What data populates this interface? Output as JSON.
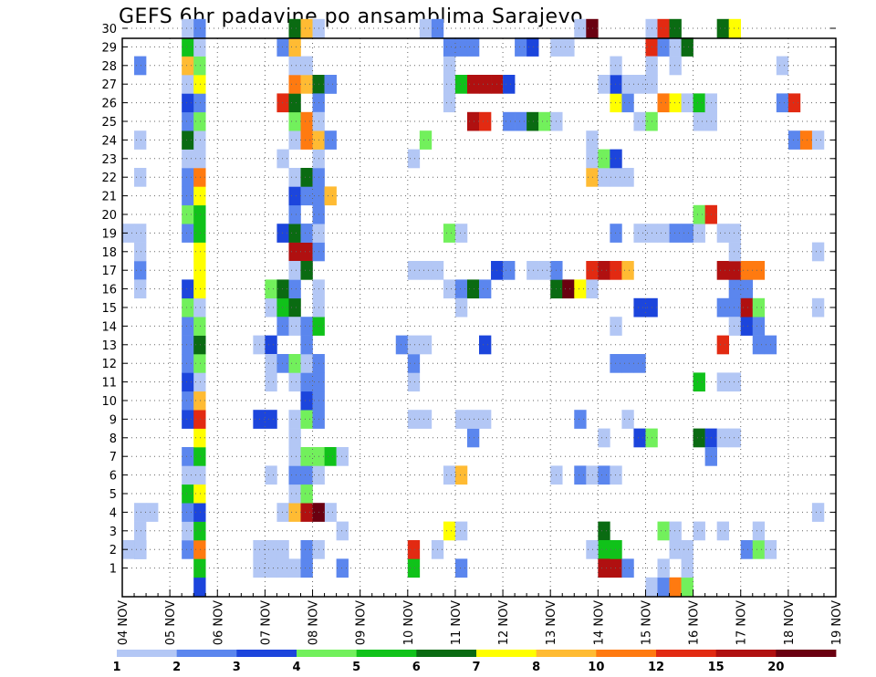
{
  "chart_data": {
    "type": "heatmap",
    "title": "GEFS 6hr padavine po ansamblima Sarajevo",
    "y_members": [
      1,
      2,
      3,
      4,
      5,
      6,
      7,
      8,
      9,
      10,
      11,
      12,
      13,
      14,
      15,
      16,
      17,
      18,
      19,
      20,
      21,
      22,
      23,
      24,
      25,
      26,
      27,
      28,
      29,
      30
    ],
    "x_tick_labels": [
      "04 NOV",
      "05 NOV",
      "06 NOV",
      "07 NOV",
      "08 NOV",
      "09 NOV",
      "10 NOV",
      "11 NOV",
      "12 NOV",
      "13 NOV",
      "14 NOV",
      "15 NOV",
      "16 NOV",
      "17 NOV",
      "18 NOV",
      "19 NOV"
    ],
    "x_range_steps": [
      0,
      60
    ],
    "legend": {
      "labels": [
        "1",
        "2",
        "3",
        "4",
        "5",
        "6",
        "7",
        "8",
        "10",
        "12",
        "15",
        "20"
      ],
      "colors": [
        "#b3c7f5",
        "#5b86ee",
        "#1c45dc",
        "#72f05c",
        "#10c21a",
        "#0a6b12",
        "#ffff00",
        "#ffbb33",
        "#ff7a10",
        "#e22a12",
        "#b01010",
        "#6a0010"
      ]
    },
    "grid": true,
    "cells": [
      [
        28,
        1,
        2
      ],
      [
        18,
        1,
        2
      ],
      [
        0,
        2,
        1
      ],
      [
        1,
        2,
        2
      ],
      [
        1,
        3,
        1
      ],
      [
        18,
        3,
        1
      ],
      [
        2,
        4,
        1
      ],
      [
        17,
        4,
        1
      ],
      [
        1,
        2,
        1
      ],
      [
        1,
        4,
        1
      ],
      [
        1,
        17,
        2
      ],
      [
        1,
        18,
        1
      ],
      [
        1,
        16,
        1
      ],
      [
        0,
        19,
        1
      ],
      [
        1,
        19,
        1
      ],
      [
        1,
        22,
        1
      ],
      [
        1,
        24,
        1
      ],
      [
        1,
        28,
        2
      ],
      [
        6,
        0,
        3
      ],
      [
        6,
        1,
        5
      ],
      [
        5,
        2,
        2
      ],
      [
        6,
        2,
        9
      ],
      [
        5,
        3,
        1
      ],
      [
        6,
        3,
        5
      ],
      [
        5,
        4,
        2
      ],
      [
        6,
        4,
        3
      ],
      [
        5,
        5,
        5
      ],
      [
        6,
        5,
        7
      ],
      [
        5,
        6,
        1
      ],
      [
        6,
        6,
        1
      ],
      [
        5,
        7,
        2
      ],
      [
        6,
        7,
        5
      ],
      [
        6,
        8,
        7
      ],
      [
        5,
        9,
        3
      ],
      [
        6,
        9,
        10
      ],
      [
        5,
        10,
        2
      ],
      [
        6,
        10,
        8
      ],
      [
        5,
        11,
        3
      ],
      [
        6,
        11,
        1
      ],
      [
        5,
        12,
        2
      ],
      [
        6,
        12,
        4
      ],
      [
        5,
        13,
        2
      ],
      [
        6,
        13,
        6
      ],
      [
        5,
        14,
        2
      ],
      [
        6,
        14,
        4
      ],
      [
        5,
        15,
        4
      ],
      [
        6,
        15,
        1
      ],
      [
        5,
        16,
        3
      ],
      [
        6,
        16,
        7
      ],
      [
        6,
        17,
        7
      ],
      [
        6,
        18,
        7
      ],
      [
        5,
        19,
        2
      ],
      [
        6,
        19,
        5
      ],
      [
        5,
        20,
        4
      ],
      [
        6,
        20,
        5
      ],
      [
        5,
        21,
        2
      ],
      [
        6,
        21,
        7
      ],
      [
        5,
        22,
        2
      ],
      [
        6,
        22,
        9
      ],
      [
        5,
        23,
        1
      ],
      [
        6,
        23,
        1
      ],
      [
        5,
        24,
        6
      ],
      [
        6,
        24,
        1
      ],
      [
        5,
        25,
        2
      ],
      [
        6,
        25,
        4
      ],
      [
        5,
        26,
        3
      ],
      [
        6,
        26,
        2
      ],
      [
        5,
        27,
        1
      ],
      [
        6,
        27,
        7
      ],
      [
        5,
        28,
        8
      ],
      [
        6,
        28,
        4
      ],
      [
        5,
        29,
        5
      ],
      [
        6,
        29,
        1
      ],
      [
        5,
        30,
        1
      ],
      [
        6,
        30,
        2
      ],
      [
        11,
        1,
        1
      ],
      [
        11,
        2,
        1
      ],
      [
        12,
        1,
        1
      ],
      [
        12,
        2,
        1
      ],
      [
        12,
        6,
        1
      ],
      [
        11,
        9,
        3
      ],
      [
        12,
        9,
        3
      ],
      [
        11,
        13,
        1
      ],
      [
        12,
        13,
        3
      ],
      [
        12,
        11,
        1
      ],
      [
        12,
        12,
        1
      ],
      [
        12,
        15,
        1
      ],
      [
        12,
        16,
        4
      ],
      [
        13,
        15,
        5
      ],
      [
        13,
        16,
        6
      ],
      [
        14,
        15,
        6
      ],
      [
        14,
        16,
        2
      ],
      [
        13,
        14,
        2
      ],
      [
        14,
        14,
        1
      ],
      [
        14,
        18,
        11
      ],
      [
        15,
        18,
        11
      ],
      [
        13,
        19,
        3
      ],
      [
        14,
        19,
        6
      ],
      [
        15,
        19,
        2
      ],
      [
        14,
        17,
        1
      ],
      [
        15,
        17,
        6
      ],
      [
        14,
        20,
        2
      ],
      [
        14,
        21,
        3
      ],
      [
        15,
        21,
        2
      ],
      [
        15,
        19,
        2
      ],
      [
        14,
        22,
        1
      ],
      [
        15,
        22,
        6
      ],
      [
        13,
        23,
        1
      ],
      [
        14,
        24,
        1
      ],
      [
        15,
        24,
        9
      ],
      [
        16,
        24,
        2
      ],
      [
        14,
        25,
        4
      ],
      [
        15,
        25,
        9
      ],
      [
        13,
        26,
        10
      ],
      [
        14,
        26,
        6
      ],
      [
        14,
        27,
        9
      ],
      [
        15,
        27,
        8
      ],
      [
        16,
        27,
        6
      ],
      [
        17,
        27,
        2
      ],
      [
        14,
        28,
        1
      ],
      [
        15,
        28,
        1
      ],
      [
        13,
        29,
        2
      ],
      [
        14,
        29,
        8
      ],
      [
        14,
        30,
        6
      ],
      [
        15,
        30,
        8
      ],
      [
        16,
        30,
        1
      ],
      [
        13,
        1,
        1
      ],
      [
        14,
        1,
        1
      ],
      [
        15,
        1,
        2
      ],
      [
        13,
        2,
        1
      ],
      [
        15,
        2,
        2
      ],
      [
        16,
        2,
        1
      ],
      [
        13,
        4,
        1
      ],
      [
        14,
        4,
        8
      ],
      [
        15,
        4,
        11
      ],
      [
        16,
        4,
        12
      ],
      [
        14,
        5,
        1
      ],
      [
        15,
        5,
        4
      ],
      [
        14,
        6,
        2
      ],
      [
        15,
        6,
        2
      ],
      [
        16,
        6,
        1
      ],
      [
        14,
        7,
        1
      ],
      [
        15,
        7,
        4
      ],
      [
        16,
        7,
        4
      ],
      [
        17,
        7,
        5
      ],
      [
        18,
        7,
        1
      ],
      [
        14,
        8,
        1
      ],
      [
        14,
        9,
        1
      ],
      [
        15,
        9,
        4
      ],
      [
        16,
        9,
        2
      ],
      [
        15,
        10,
        3
      ],
      [
        16,
        10,
        2
      ],
      [
        14,
        11,
        1
      ],
      [
        15,
        11,
        2
      ],
      [
        16,
        11,
        2
      ],
      [
        13,
        12,
        2
      ],
      [
        14,
        12,
        4
      ],
      [
        15,
        12,
        1
      ],
      [
        16,
        12,
        2
      ],
      [
        15,
        13,
        2
      ],
      [
        15,
        14,
        2
      ],
      [
        16,
        14,
        5
      ],
      [
        16,
        15,
        1
      ],
      [
        16,
        16,
        1
      ],
      [
        16,
        18,
        2
      ],
      [
        16,
        19,
        1
      ],
      [
        16,
        20,
        2
      ],
      [
        16,
        21,
        2
      ],
      [
        17,
        21,
        8
      ],
      [
        16,
        22,
        2
      ],
      [
        16,
        23,
        1
      ],
      [
        16,
        24,
        8
      ],
      [
        17,
        24,
        2
      ],
      [
        16,
        26,
        2
      ],
      [
        16,
        25,
        1
      ],
      [
        17,
        27,
        2
      ],
      [
        24,
        1,
        5
      ],
      [
        24,
        2,
        10
      ],
      [
        24,
        9,
        1
      ],
      [
        25,
        9,
        1
      ],
      [
        24,
        11,
        1
      ],
      [
        24,
        12,
        2
      ],
      [
        23,
        13,
        2
      ],
      [
        24,
        13,
        1
      ],
      [
        25,
        13,
        1
      ],
      [
        26,
        2,
        1
      ],
      [
        27,
        3,
        7
      ],
      [
        28,
        3,
        1
      ],
      [
        27,
        6,
        1
      ],
      [
        28,
        6,
        8
      ],
      [
        29,
        8,
        2
      ],
      [
        28,
        9,
        1
      ],
      [
        29,
        9,
        1
      ],
      [
        30,
        9,
        1
      ],
      [
        30,
        13,
        3
      ],
      [
        27,
        16,
        1
      ],
      [
        28,
        16,
        2
      ],
      [
        29,
        16,
        6
      ],
      [
        30,
        16,
        2
      ],
      [
        28,
        15,
        1
      ],
      [
        24,
        17,
        1
      ],
      [
        25,
        17,
        1
      ],
      [
        26,
        17,
        1
      ],
      [
        31,
        17,
        3
      ],
      [
        32,
        17,
        2
      ],
      [
        27,
        19,
        4
      ],
      [
        28,
        19,
        1
      ],
      [
        24,
        23,
        1
      ],
      [
        25,
        24,
        4
      ],
      [
        25,
        30,
        1
      ],
      [
        26,
        30,
        2
      ],
      [
        27,
        28,
        1
      ],
      [
        27,
        29,
        2
      ],
      [
        28,
        29,
        2
      ],
      [
        29,
        29,
        2
      ],
      [
        27,
        27,
        1
      ],
      [
        27,
        26,
        1
      ],
      [
        28,
        27,
        5
      ],
      [
        29,
        27,
        11
      ],
      [
        30,
        27,
        11
      ],
      [
        31,
        27,
        11
      ],
      [
        32,
        27,
        3
      ],
      [
        29,
        25,
        11
      ],
      [
        30,
        25,
        10
      ],
      [
        32,
        25,
        2
      ],
      [
        33,
        25,
        2
      ],
      [
        34,
        25,
        6
      ],
      [
        35,
        25,
        4
      ],
      [
        36,
        25,
        1
      ],
      [
        33,
        29,
        2
      ],
      [
        34,
        29,
        3
      ],
      [
        36,
        29,
        1
      ],
      [
        37,
        29,
        1
      ],
      [
        36,
        6,
        1
      ],
      [
        38,
        9,
        2
      ],
      [
        39,
        17,
        10
      ],
      [
        36,
        16,
        6
      ],
      [
        37,
        16,
        12
      ],
      [
        38,
        16,
        7
      ],
      [
        39,
        16,
        1
      ],
      [
        36,
        17,
        2
      ],
      [
        34,
        17,
        1
      ],
      [
        35,
        17,
        1
      ],
      [
        40,
        3,
        6
      ],
      [
        40,
        2,
        5
      ],
      [
        40,
        1,
        11
      ],
      [
        41,
        1,
        11
      ],
      [
        39,
        2,
        1
      ],
      [
        41,
        2,
        5
      ],
      [
        42,
        1,
        2
      ],
      [
        38,
        6,
        2
      ],
      [
        39,
        6,
        1
      ],
      [
        40,
        6,
        2
      ],
      [
        41,
        6,
        1
      ],
      [
        40,
        8,
        1
      ],
      [
        42,
        9,
        1
      ],
      [
        43,
        8,
        3
      ],
      [
        44,
        8,
        4
      ],
      [
        41,
        12,
        2
      ],
      [
        42,
        12,
        2
      ],
      [
        43,
        12,
        2
      ],
      [
        41,
        14,
        1
      ],
      [
        44,
        15,
        3
      ],
      [
        43,
        15,
        3
      ],
      [
        40,
        17,
        11
      ],
      [
        41,
        17,
        10
      ],
      [
        42,
        17,
        8
      ],
      [
        41,
        19,
        2
      ],
      [
        43,
        19,
        1
      ],
      [
        44,
        19,
        1
      ],
      [
        45,
        19,
        1
      ],
      [
        46,
        19,
        2
      ],
      [
        48,
        19,
        1
      ],
      [
        39,
        22,
        8
      ],
      [
        40,
        22,
        1
      ],
      [
        41,
        22,
        1
      ],
      [
        42,
        22,
        1
      ],
      [
        39,
        23,
        1
      ],
      [
        40,
        23,
        4
      ],
      [
        41,
        23,
        3
      ],
      [
        39,
        24,
        1
      ],
      [
        41,
        26,
        7
      ],
      [
        42,
        26,
        2
      ],
      [
        41,
        27,
        3
      ],
      [
        42,
        27,
        1
      ],
      [
        43,
        27,
        1
      ],
      [
        44,
        27,
        1
      ],
      [
        41,
        28,
        1
      ],
      [
        40,
        27,
        1
      ],
      [
        43,
        25,
        1
      ],
      [
        44,
        25,
        4
      ],
      [
        44,
        29,
        10
      ],
      [
        45,
        29,
        2
      ],
      [
        46,
        29,
        1
      ],
      [
        47,
        29,
        6
      ],
      [
        44,
        30,
        1
      ],
      [
        45,
        30,
        10
      ],
      [
        46,
        30,
        6
      ],
      [
        38,
        30,
        1
      ],
      [
        39,
        30,
        12
      ],
      [
        45,
        26,
        9
      ],
      [
        46,
        26,
        7
      ],
      [
        46,
        28,
        1
      ],
      [
        44,
        0,
        1
      ],
      [
        45,
        0,
        2
      ],
      [
        46,
        0,
        9
      ],
      [
        47,
        0,
        4
      ],
      [
        45,
        1,
        1
      ],
      [
        47,
        1,
        1
      ],
      [
        47,
        2,
        1
      ],
      [
        45,
        3,
        4
      ],
      [
        46,
        3,
        1
      ],
      [
        46,
        2,
        1
      ],
      [
        48,
        3,
        1
      ],
      [
        50,
        3,
        1
      ],
      [
        48,
        8,
        6
      ],
      [
        49,
        8,
        3
      ],
      [
        49,
        7,
        2
      ],
      [
        50,
        8,
        1
      ],
      [
        51,
        8,
        1
      ],
      [
        48,
        11,
        5
      ],
      [
        50,
        11,
        1
      ],
      [
        51,
        11,
        1
      ],
      [
        50,
        13,
        10
      ],
      [
        50,
        15,
        2
      ],
      [
        51,
        15,
        2
      ],
      [
        51,
        14,
        1
      ],
      [
        52,
        14,
        3
      ],
      [
        53,
        14,
        2
      ],
      [
        51,
        16,
        2
      ],
      [
        52,
        16,
        2
      ],
      [
        50,
        17,
        11
      ],
      [
        51,
        17,
        11
      ],
      [
        52,
        17,
        9
      ],
      [
        53,
        17,
        9
      ],
      [
        51,
        18,
        1
      ],
      [
        51,
        19,
        1
      ],
      [
        52,
        15,
        11
      ],
      [
        53,
        15,
        4
      ],
      [
        52,
        2,
        2
      ],
      [
        53,
        2,
        4
      ],
      [
        54,
        2,
        1
      ],
      [
        53,
        3,
        1
      ],
      [
        53,
        13,
        2
      ],
      [
        54,
        13,
        2
      ],
      [
        48,
        20,
        4
      ],
      [
        49,
        20,
        10
      ],
      [
        47,
        19,
        2
      ],
      [
        48,
        25,
        1
      ],
      [
        49,
        25,
        1
      ],
      [
        47,
        26,
        1
      ],
      [
        48,
        26,
        5
      ],
      [
        49,
        26,
        1
      ],
      [
        50,
        30,
        6
      ],
      [
        51,
        30,
        7
      ],
      [
        50,
        19,
        1
      ],
      [
        55,
        28,
        1
      ],
      [
        55,
        26,
        2
      ],
      [
        56,
        26,
        10
      ],
      [
        56,
        24,
        2
      ],
      [
        57,
        24,
        9
      ],
      [
        58,
        24,
        1
      ],
      [
        58,
        15,
        1
      ],
      [
        58,
        4,
        1
      ],
      [
        58,
        18,
        1
      ],
      [
        42,
        31,
        1
      ],
      [
        44,
        28,
        1
      ]
    ]
  }
}
